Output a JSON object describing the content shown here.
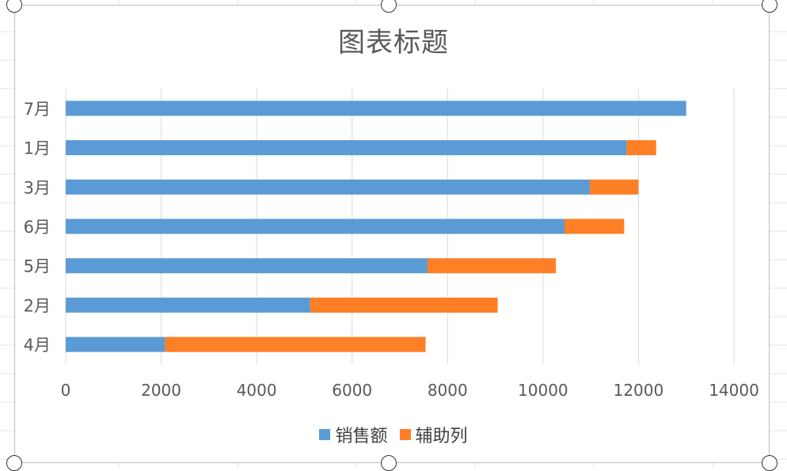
{
  "chart_data": {
    "type": "bar",
    "orientation": "horizontal",
    "stacked": true,
    "title": "图表标题",
    "categories": [
      "7月",
      "1月",
      "3月",
      "6月",
      "5月",
      "2月",
      "4月"
    ],
    "series": [
      {
        "name": "销售额",
        "color": "#5B9BD5",
        "values": [
          13000,
          11750,
          10980,
          10450,
          7580,
          5120,
          2080
        ]
      },
      {
        "name": "辅助列",
        "color": "#FF7F27",
        "values": [
          0,
          620,
          1020,
          1250,
          2690,
          3930,
          5460
        ]
      }
    ],
    "x_ticks": [
      "0",
      "2000",
      "4000",
      "6000",
      "8000",
      "10000",
      "12000",
      "14000"
    ],
    "xlim": [
      0,
      14000
    ],
    "grid": true,
    "legend_position": "bottom"
  }
}
